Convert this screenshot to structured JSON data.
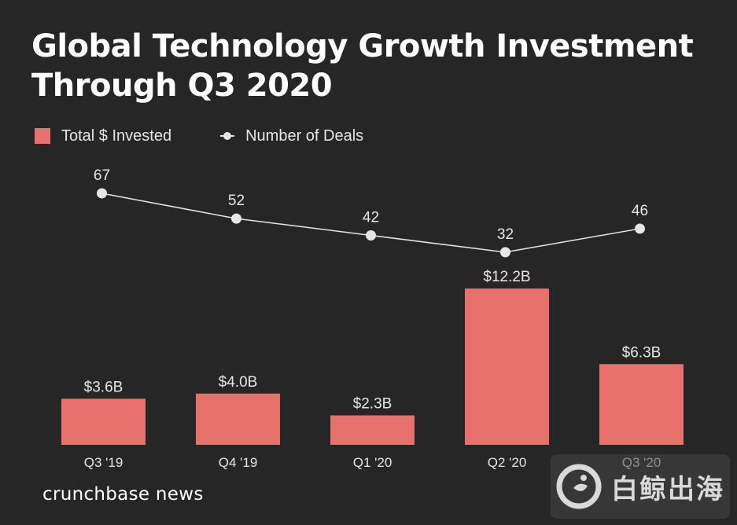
{
  "chart_data": {
    "type": "bar",
    "title": "Global Technology Growth Investment Through Q3 2020",
    "categories": [
      "Q3 '19",
      "Q4 '19",
      "Q1 '20",
      "Q2 '20",
      "Q3 '20"
    ],
    "series": [
      {
        "name": "Total $ Invested",
        "type": "bar",
        "values": [
          3.6,
          4.0,
          2.3,
          12.2,
          6.3
        ],
        "labels": [
          "$3.6B",
          "$4.0B",
          "$2.3B",
          "$12.2B",
          "$6.3B"
        ],
        "unit": "B USD"
      },
      {
        "name": "Number of Deals",
        "type": "line",
        "values": [
          67,
          52,
          42,
          32,
          46
        ],
        "labels": [
          "67",
          "52",
          "42",
          "32",
          "46"
        ]
      }
    ],
    "legend": [
      "Total $ Invested",
      "Number of Deals"
    ],
    "legend_position": "top-left",
    "grid": false
  },
  "brand": "crunchbase news",
  "watermark": "白鲸出海",
  "colors": {
    "background": "#262626",
    "bar": "#e8706d",
    "line": "#e6e6e6",
    "text": "#ffffff",
    "label": "#e6e6e6"
  }
}
